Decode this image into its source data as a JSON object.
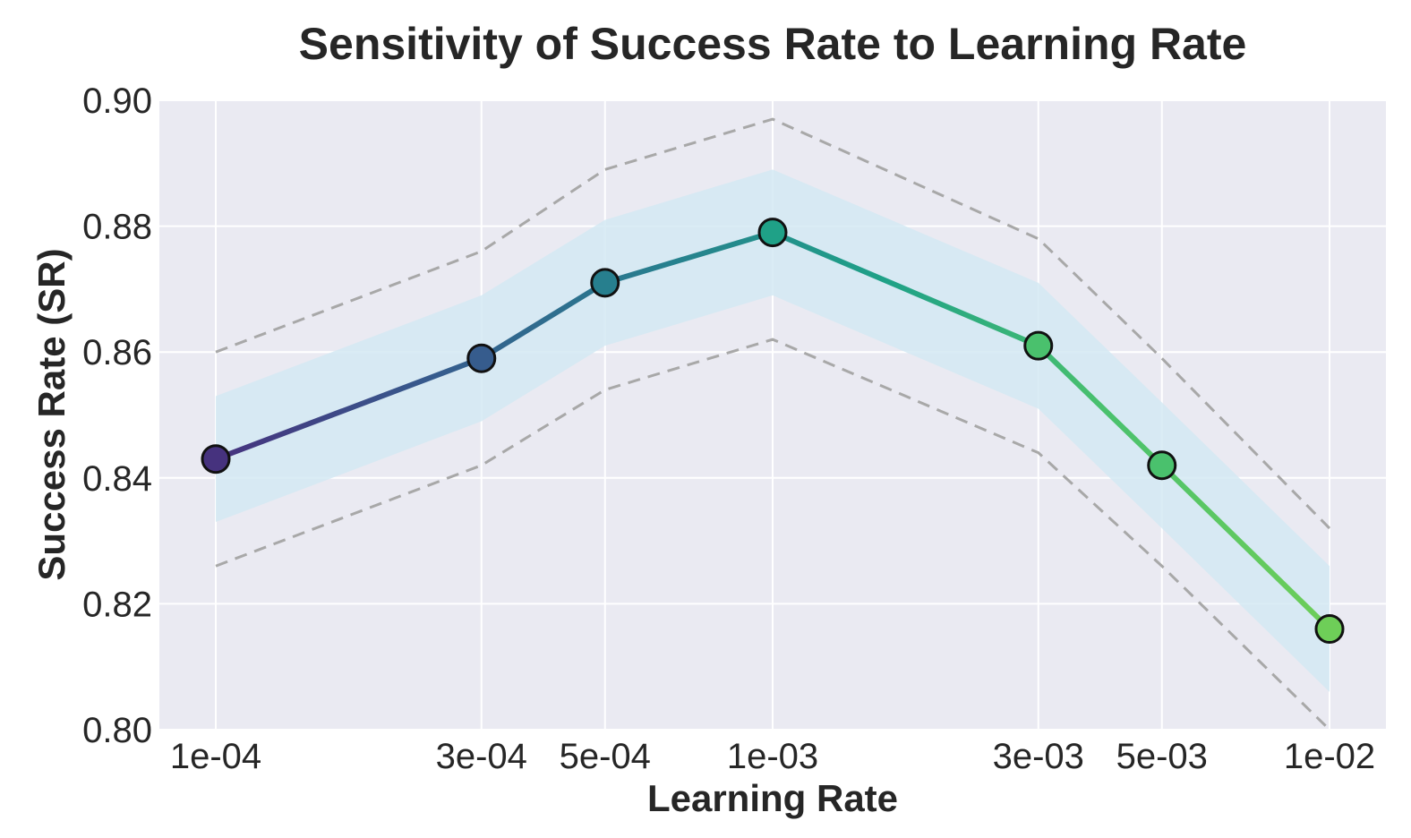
{
  "colors": {
    "plot_background": "#EAEAF2",
    "grid": "#FFFFFF",
    "band": "#D4E9F3",
    "bound_line": "#A8A8A8",
    "marker_edge": "#111111",
    "gradient": [
      "#46327E",
      "#365C8D",
      "#277F8E",
      "#1FA187",
      "#4AC16D",
      "#6ECE58"
    ]
  },
  "chart_data": {
    "type": "line",
    "title": "Sensitivity of Success Rate to Learning Rate",
    "xlabel": "Learning Rate",
    "ylabel": "Success Rate (SR)",
    "x_scale": "log",
    "xlim": [
      0.0001,
      0.01
    ],
    "ylim": [
      0.8,
      0.9
    ],
    "grid": true,
    "x": [
      0.0001,
      0.0003,
      0.0005,
      0.001,
      0.003,
      0.005,
      0.01
    ],
    "x_tick_labels": [
      "1e-04",
      "3e-04",
      "5e-04",
      "1e-03",
      "3e-03",
      "5e-03",
      "1e-02"
    ],
    "y_ticks": [
      0.8,
      0.82,
      0.84,
      0.86,
      0.88,
      0.9
    ],
    "y_tick_labels": [
      "0.80",
      "0.82",
      "0.84",
      "0.86",
      "0.88",
      "0.90"
    ],
    "series": [
      {
        "name": "Success Rate",
        "values": [
          0.843,
          0.859,
          0.871,
          0.879,
          0.861,
          0.842,
          0.816
        ],
        "marker_colors": [
          "#46327E",
          "#365C8D",
          "#277F8E",
          "#1FA187",
          "#4AC16D",
          "#4AC16D",
          "#6ECE58"
        ]
      }
    ],
    "band": {
      "lower": [
        0.833,
        0.849,
        0.861,
        0.869,
        0.851,
        0.832,
        0.806
      ],
      "upper": [
        0.853,
        0.869,
        0.881,
        0.889,
        0.871,
        0.852,
        0.826
      ]
    },
    "bounds": {
      "lower": [
        0.826,
        0.842,
        0.854,
        0.862,
        0.844,
        0.826,
        0.8
      ],
      "upper": [
        0.86,
        0.876,
        0.889,
        0.897,
        0.878,
        0.859,
        0.832
      ]
    }
  }
}
